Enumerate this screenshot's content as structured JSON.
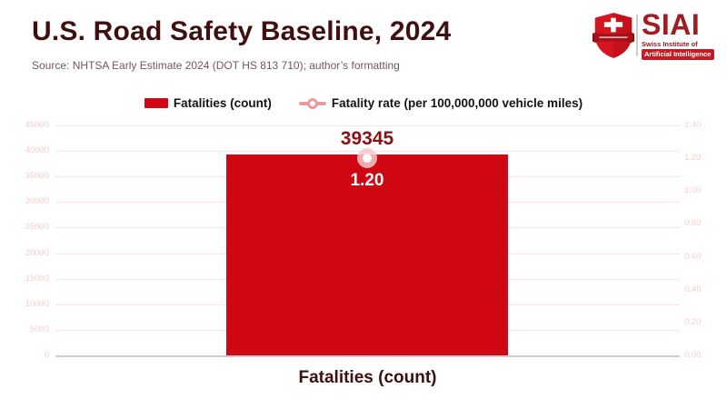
{
  "header": {
    "title": "U.S. Road Safety Baseline, 2024",
    "source": "Source: NHTSA Early Estimate 2024 (DOT HS 813 710); author’s formatting"
  },
  "logo": {
    "acronym": "SIAI",
    "line1": "Swiss Institute of",
    "line2": "Artificial Intelligence"
  },
  "legend": {
    "items": [
      {
        "label": "Fatalities (count)",
        "marker": "bar-swatch",
        "color": "#ce0712"
      },
      {
        "label": "Fatality rate (per 100,000,000 vehicle miles)",
        "marker": "line-dot",
        "color": "#ea99a1"
      }
    ]
  },
  "chart_data": {
    "type": "bar",
    "categories": [
      "Fatalities (count)"
    ],
    "series": [
      {
        "name": "Fatalities (count)",
        "render": "bar",
        "axis": "left",
        "values": [
          39345
        ],
        "label": "39345",
        "color": "#ce0712"
      },
      {
        "name": "Fatality rate (per 100,000,000 vehicle miles)",
        "render": "point",
        "axis": "right",
        "values": [
          1.2
        ],
        "label": "1.20",
        "color": "#ea99a1"
      }
    ],
    "xlabel": "Fatalities (count)",
    "left_axis": {
      "min": 0,
      "max": 45000,
      "step": 5000,
      "ticks": [
        "45000",
        "40000",
        "35000",
        "30000",
        "25000",
        "20000",
        "15000",
        "10000",
        "5000",
        "0"
      ]
    },
    "right_axis": {
      "min": 0,
      "max": 1.4,
      "step": 0.2,
      "ticks": [
        "1.40",
        "1.20",
        "1.00",
        "0.80",
        "0.60",
        "0.40",
        "0.20",
        "0.00"
      ]
    },
    "grid": true,
    "legend_position": "top"
  },
  "colors": {
    "bar": "#ce0712",
    "rate_line": "#ea99a1",
    "rate_halo": "rgba(244,200,206,0.85)",
    "title_text": "#3f100f",
    "source_text": "#6f5a5b",
    "bar_value_text": "#8a1114",
    "tick_text": "#f7cdd1",
    "gridline": "#fce4e6",
    "axis_line": "#cbcbcb",
    "logo_red": "#c11d24"
  }
}
